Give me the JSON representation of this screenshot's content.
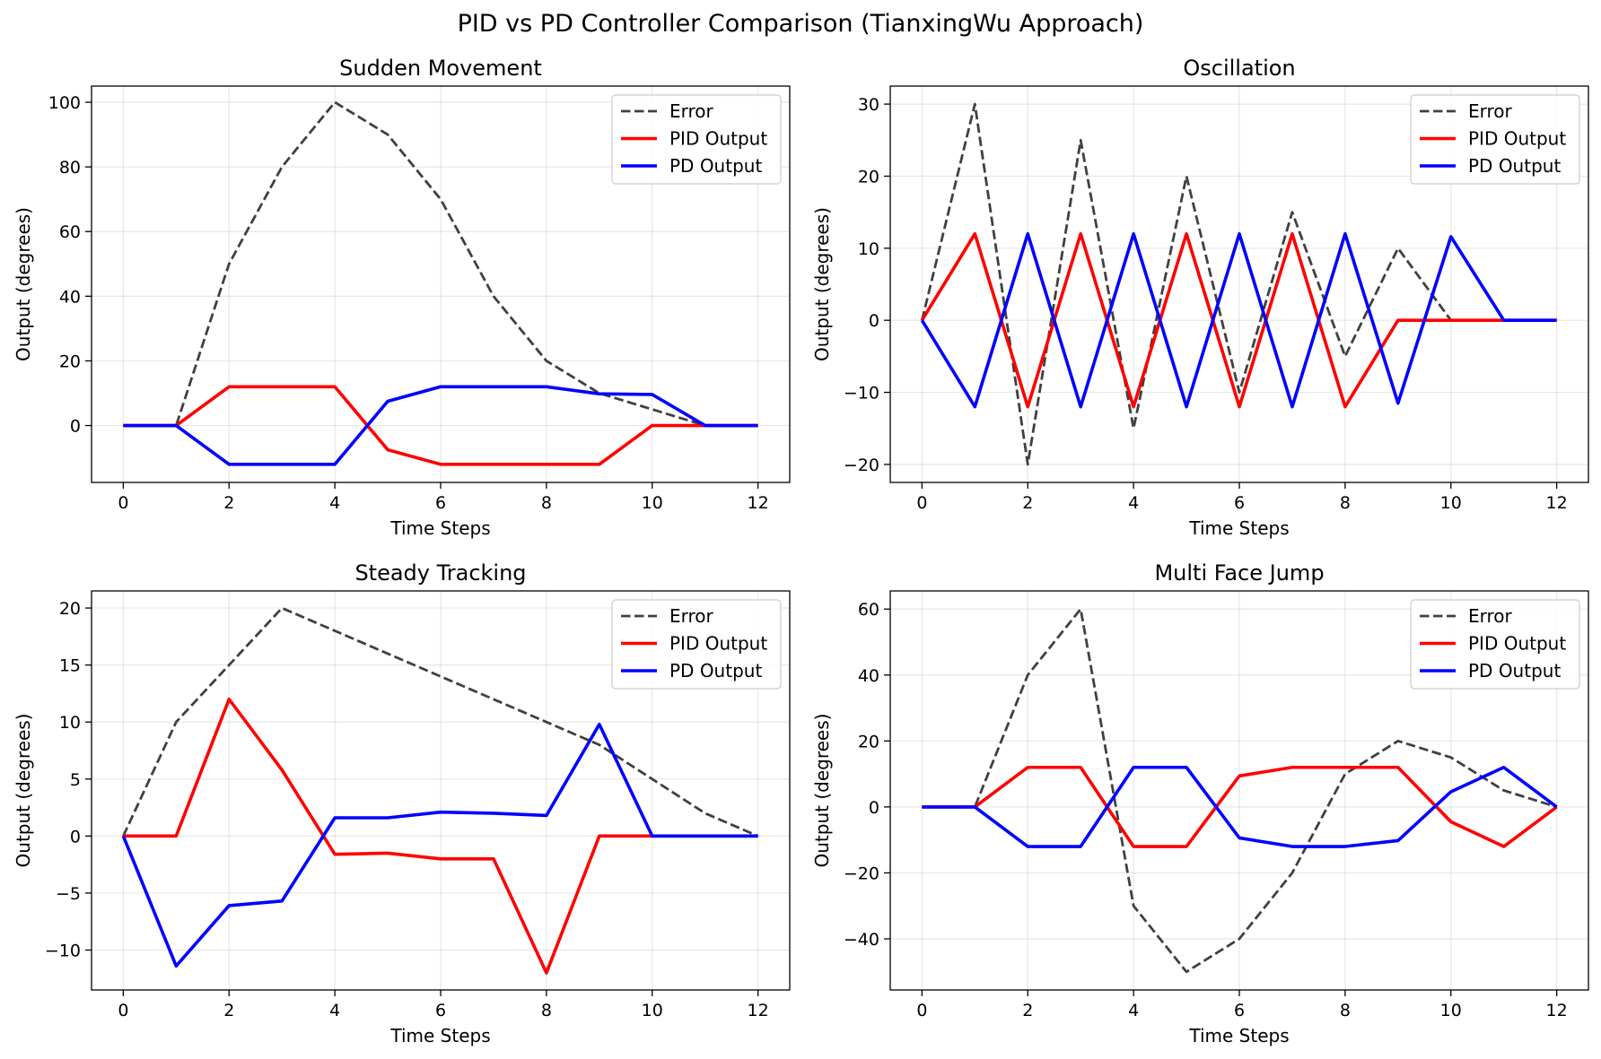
{
  "figure": {
    "title": "PID vs PD Controller Comparison (TianxingWu Approach)"
  },
  "chart_data": [
    {
      "type": "line",
      "title": "Sudden Movement",
      "xlabel": "Time Steps",
      "ylabel": "Output (degrees)",
      "xlim": [
        -0.6,
        12.6
      ],
      "ylim": [
        -17.6,
        105.0
      ],
      "xticks": [
        0,
        2,
        4,
        6,
        8,
        10,
        12
      ],
      "yticks": [
        0,
        20,
        40,
        60,
        80,
        100
      ],
      "grid": true,
      "legend": "top-right",
      "x": [
        0,
        1,
        2,
        3,
        4,
        5,
        6,
        7,
        8,
        9,
        10,
        11,
        12
      ],
      "series": [
        {
          "name": "Error",
          "color": "#404040",
          "style": "dashed",
          "values": [
            0,
            0,
            50,
            80,
            100,
            90,
            70,
            40,
            20,
            10,
            5,
            0,
            0
          ]
        },
        {
          "name": "PID Output",
          "color": "#ff0000",
          "style": "solid",
          "values": [
            0,
            0,
            12,
            12,
            12,
            -7.5,
            -12,
            -12,
            -12,
            -12,
            0,
            0,
            0
          ]
        },
        {
          "name": "PD Output",
          "color": "#0000ff",
          "style": "solid",
          "values": [
            0,
            0,
            -12,
            -12,
            -12,
            7.5,
            12,
            12,
            12,
            9.8,
            9.6,
            0,
            0
          ]
        }
      ]
    },
    {
      "type": "line",
      "title": "Oscillation",
      "xlabel": "Time Steps",
      "ylabel": "Output (degrees)",
      "xlim": [
        -0.6,
        12.6
      ],
      "ylim": [
        -22.5,
        32.5
      ],
      "xticks": [
        0,
        2,
        4,
        6,
        8,
        10,
        12
      ],
      "yticks": [
        -20,
        -10,
        0,
        10,
        20,
        30
      ],
      "grid": true,
      "legend": "top-right",
      "x": [
        0,
        1,
        2,
        3,
        4,
        5,
        6,
        7,
        8,
        9,
        10,
        11,
        12
      ],
      "series": [
        {
          "name": "Error",
          "color": "#404040",
          "style": "dashed",
          "values": [
            0,
            30,
            -20,
            25,
            -15,
            20,
            -10,
            15,
            -5,
            10,
            0,
            0,
            0
          ]
        },
        {
          "name": "PID Output",
          "color": "#ff0000",
          "style": "solid",
          "values": [
            0,
            12,
            -12,
            12,
            -12,
            12,
            -12,
            12,
            -12,
            0,
            0,
            0,
            0
          ]
        },
        {
          "name": "PD Output",
          "color": "#0000ff",
          "style": "solid",
          "values": [
            0,
            -12,
            12,
            -12,
            12,
            -12,
            12,
            -12,
            12,
            -11.5,
            11.6,
            0,
            0
          ]
        }
      ]
    },
    {
      "type": "line",
      "title": "Steady Tracking",
      "xlabel": "Time Steps",
      "ylabel": "Output (degrees)",
      "xlim": [
        -0.6,
        12.6
      ],
      "ylim": [
        -13.5,
        21.5
      ],
      "xticks": [
        0,
        2,
        4,
        6,
        8,
        10,
        12
      ],
      "yticks": [
        -10,
        -5,
        0,
        5,
        10,
        15,
        20
      ],
      "grid": true,
      "legend": "top-right",
      "x": [
        0,
        1,
        2,
        3,
        4,
        5,
        6,
        7,
        8,
        9,
        10,
        11,
        12
      ],
      "series": [
        {
          "name": "Error",
          "color": "#404040",
          "style": "dashed",
          "values": [
            0,
            10,
            15,
            20,
            18,
            16,
            14,
            12,
            10,
            8,
            5,
            2,
            0
          ]
        },
        {
          "name": "PID Output",
          "color": "#ff0000",
          "style": "solid",
          "values": [
            0,
            0,
            12,
            5.8,
            -1.6,
            -1.5,
            -2,
            -2,
            -12,
            0,
            0,
            0,
            0
          ]
        },
        {
          "name": "PD Output",
          "color": "#0000ff",
          "style": "solid",
          "values": [
            0,
            -11.4,
            -6.1,
            -5.7,
            1.6,
            1.6,
            2.1,
            2,
            1.8,
            9.8,
            0,
            0,
            0
          ]
        }
      ]
    },
    {
      "type": "line",
      "title": "Multi Face Jump",
      "xlabel": "Time Steps",
      "ylabel": "Output (degrees)",
      "xlim": [
        -0.6,
        12.6
      ],
      "ylim": [
        -55.5,
        65.5
      ],
      "xticks": [
        0,
        2,
        4,
        6,
        8,
        10,
        12
      ],
      "yticks": [
        -40,
        -20,
        0,
        20,
        40,
        60
      ],
      "grid": true,
      "legend": "top-right",
      "x": [
        0,
        1,
        2,
        3,
        4,
        5,
        6,
        7,
        8,
        9,
        10,
        11,
        12
      ],
      "series": [
        {
          "name": "Error",
          "color": "#404040",
          "style": "dashed",
          "values": [
            0,
            0,
            40,
            60,
            -30,
            -50,
            -40,
            -20,
            10,
            20,
            15,
            5,
            0
          ]
        },
        {
          "name": "PID Output",
          "color": "#ff0000",
          "style": "solid",
          "values": [
            0,
            0,
            12,
            12,
            -12,
            -12,
            9.4,
            12,
            12,
            12,
            -4.5,
            -12,
            0
          ]
        },
        {
          "name": "PD Output",
          "color": "#0000ff",
          "style": "solid",
          "values": [
            0,
            0,
            -12,
            -12,
            12,
            12,
            -9.4,
            -12,
            -12,
            -10.2,
            4.6,
            12,
            0
          ]
        }
      ]
    }
  ]
}
